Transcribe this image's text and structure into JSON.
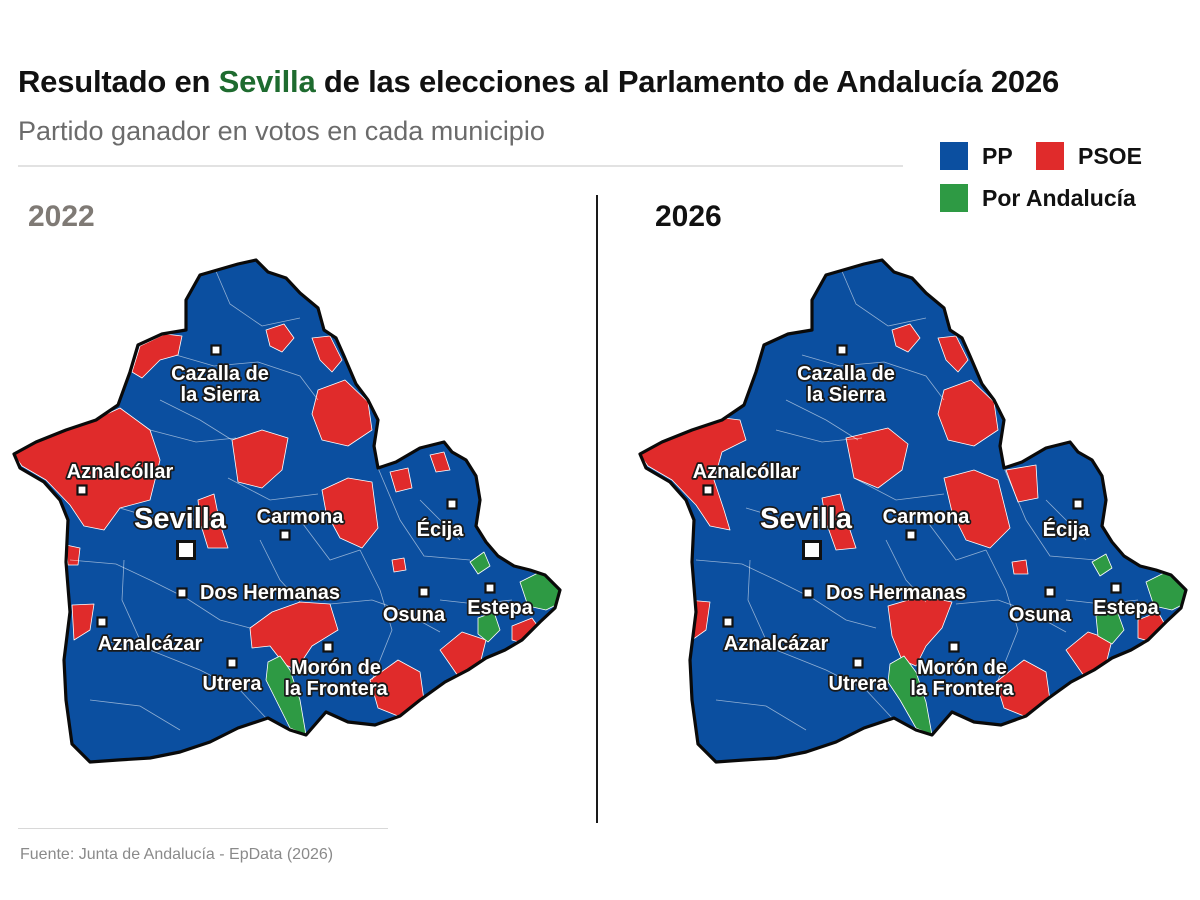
{
  "header": {
    "title_pre": "Resultado en ",
    "title_highlight": "Sevilla",
    "title_post": " de las elecciones al Parlamento de Andalucía 2026",
    "subtitle": "Partido ganador en votos en cada municipio"
  },
  "legend": [
    {
      "label": "PP",
      "color": "#0b4fa0"
    },
    {
      "label": "PSOE",
      "color": "#e02b2b"
    },
    {
      "label": "Por Andalucía",
      "color": "#2e9a44"
    }
  ],
  "maps": [
    {
      "year": "2022"
    },
    {
      "year": "2026"
    }
  ],
  "places": [
    {
      "lines": [
        "Cazalla de",
        "la Sierra"
      ]
    },
    {
      "lines": [
        "Aznalcóllar"
      ]
    },
    {
      "lines": [
        "Sevilla"
      ]
    },
    {
      "lines": [
        "Carmona"
      ]
    },
    {
      "lines": [
        "Écija"
      ]
    },
    {
      "lines": [
        "Dos Hermanas"
      ]
    },
    {
      "lines": [
        "Osuna"
      ]
    },
    {
      "lines": [
        "Estepa"
      ]
    },
    {
      "lines": [
        "Aznalcázar"
      ]
    },
    {
      "lines": [
        "Utrera"
      ]
    },
    {
      "lines": [
        "Morón de",
        "la Frontera"
      ]
    }
  ],
  "source": "Fuente: Junta de Andalucía - EpData (2026)"
}
